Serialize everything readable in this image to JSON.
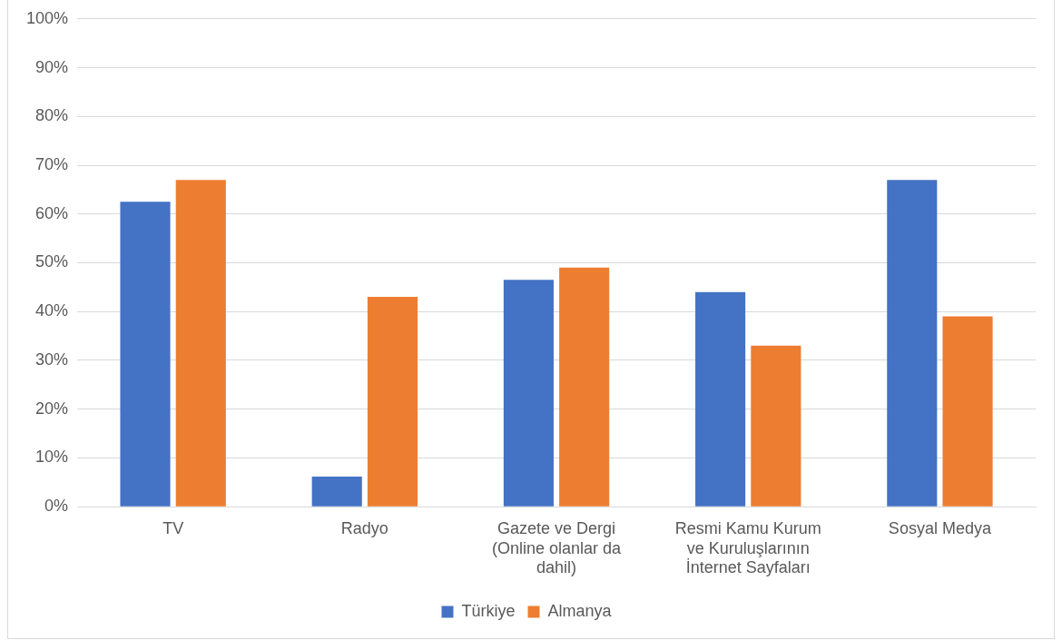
{
  "chart_data": {
    "type": "bar",
    "categories": [
      "TV",
      "Radyo",
      "Gazete ve Dergi (Online olanlar da dahil)",
      "Resmi Kamu Kurum ve Kuruluşlarının İnternet Sayfaları",
      "Sosyal Medya"
    ],
    "series": [
      {
        "name": "Türkiye",
        "color": "#4472c4",
        "values": [
          62.5,
          6.2,
          46.5,
          44,
          67
        ]
      },
      {
        "name": "Almanya",
        "color": "#ed7d31",
        "values": [
          67,
          43,
          49,
          33,
          39
        ]
      }
    ],
    "ylim": [
      0,
      100
    ],
    "yticks": [
      {
        "value": 0,
        "label": "0%"
      },
      {
        "value": 10,
        "label": "10%"
      },
      {
        "value": 20,
        "label": "20%"
      },
      {
        "value": 30,
        "label": "30%"
      },
      {
        "value": 40,
        "label": "40%"
      },
      {
        "value": 50,
        "label": "50%"
      },
      {
        "value": 60,
        "label": "60%"
      },
      {
        "value": 70,
        "label": "70%"
      },
      {
        "value": 80,
        "label": "80%"
      },
      {
        "value": 90,
        "label": "90%"
      },
      {
        "value": 100,
        "label": "100%"
      }
    ],
    "grid": "y",
    "legend": "bottom"
  }
}
